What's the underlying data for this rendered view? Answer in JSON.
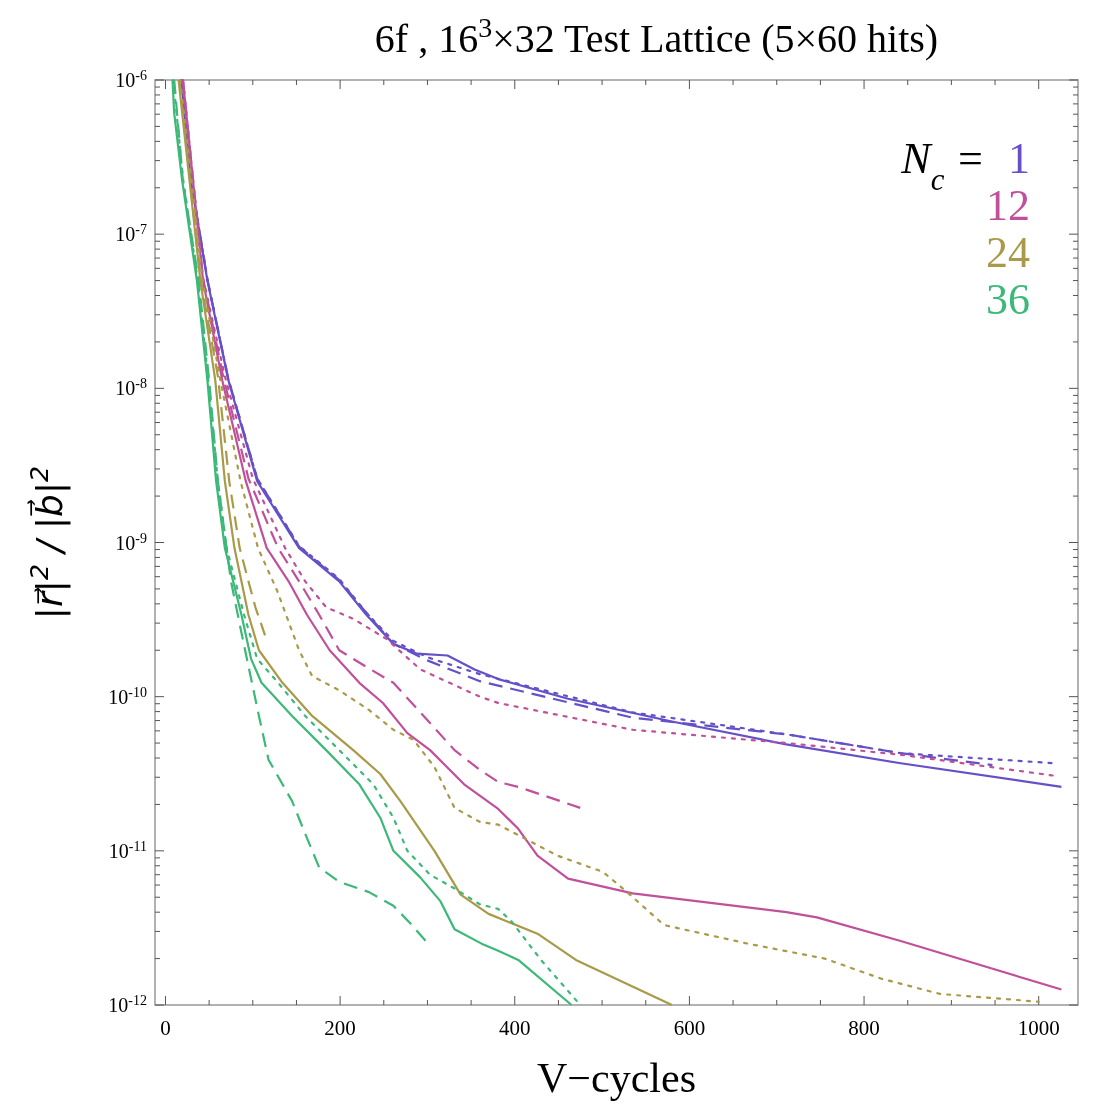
{
  "chart_data": {
    "type": "line",
    "title": "6f , 16$^{3}$×32 Test Lattice (5×60 hits)",
    "xlabel": "V−cycles",
    "ylabel": "|r⃗|$^{2}$ / |b⃗|$^{2}$",
    "legend_title": "N$_{c}$ =",
    "legend": "top right",
    "log": "y",
    "grid": false,
    "xlim": [
      -12,
      1045
    ],
    "xticks": [
      0,
      {
        "value": 50,
        "label": null
      },
      {
        "value": 100,
        "label": null
      },
      {
        "value": 150,
        "label": null
      },
      200,
      {
        "value": 250,
        "label": null
      },
      {
        "value": 300,
        "label": null
      },
      {
        "value": 350,
        "label": null
      },
      400,
      {
        "value": 450,
        "label": null
      },
      {
        "value": 500,
        "label": null
      },
      {
        "value": 550,
        "label": null
      },
      600,
      {
        "value": 650,
        "label": null
      },
      {
        "value": 700,
        "label": null
      },
      {
        "value": 750,
        "label": null
      },
      800,
      {
        "value": 850,
        "label": null
      },
      {
        "value": 900,
        "label": null
      },
      {
        "value": 950,
        "label": null
      },
      1000
    ],
    "ylim": [
      1e-12,
      1e-06
    ],
    "yticks": [
      {
        "value": 1e-12,
        "label": "10$^{-12}$"
      },
      {
        "value": 2e-12,
        "label": null
      },
      {
        "value": 3e-12,
        "label": null
      },
      {
        "value": 4e-12,
        "label": null
      },
      {
        "value": 5e-12,
        "label": null
      },
      {
        "value": 6e-12,
        "label": null
      },
      {
        "value": 7e-12,
        "label": null
      },
      {
        "value": 8e-12,
        "label": null
      },
      {
        "value": 9e-12,
        "label": null
      },
      {
        "value": 1e-11,
        "label": "10$^{-11}$"
      },
      {
        "value": 2e-11,
        "label": null
      },
      {
        "value": 3e-11,
        "label": null
      },
      {
        "value": 4e-11,
        "label": null
      },
      {
        "value": 5e-11,
        "label": null
      },
      {
        "value": 6e-11,
        "label": null
      },
      {
        "value": 7e-11,
        "label": null
      },
      {
        "value": 8e-11,
        "label": null
      },
      {
        "value": 9e-11,
        "label": null
      },
      {
        "value": 1e-10,
        "label": "10$^{-10}$"
      },
      {
        "value": 2e-10,
        "label": null
      },
      {
        "value": 3e-10,
        "label": null
      },
      {
        "value": 4e-10,
        "label": null
      },
      {
        "value": 5e-10,
        "label": null
      },
      {
        "value": 6e-10,
        "label": null
      },
      {
        "value": 7e-10,
        "label": null
      },
      {
        "value": 8e-10,
        "label": null
      },
      {
        "value": 9e-10,
        "label": null
      },
      {
        "value": 1e-09,
        "label": "10$^{-9}$"
      },
      {
        "value": 2e-09,
        "label": null
      },
      {
        "value": 3e-09,
        "label": null
      },
      {
        "value": 4e-09,
        "label": null
      },
      {
        "value": 5e-09,
        "label": null
      },
      {
        "value": 6e-09,
        "label": null
      },
      {
        "value": 7e-09,
        "label": null
      },
      {
        "value": 8e-09,
        "label": null
      },
      {
        "value": 9e-09,
        "label": null
      },
      {
        "value": 1e-08,
        "label": "10$^{-8}$"
      },
      {
        "value": 2e-08,
        "label": null
      },
      {
        "value": 3e-08,
        "label": null
      },
      {
        "value": 4e-08,
        "label": null
      },
      {
        "value": 5e-08,
        "label": null
      },
      {
        "value": 6e-08,
        "label": null
      },
      {
        "value": 7e-08,
        "label": null
      },
      {
        "value": 8e-08,
        "label": null
      },
      {
        "value": 9e-08,
        "label": null
      },
      {
        "value": 1e-07,
        "label": "10$^{-7}$"
      },
      {
        "value": 2e-07,
        "label": null
      },
      {
        "value": 3e-07,
        "label": null
      },
      {
        "value": 4e-07,
        "label": null
      },
      {
        "value": 5e-07,
        "label": null
      },
      {
        "value": 6e-07,
        "label": null
      },
      {
        "value": 7e-07,
        "label": null
      },
      {
        "value": 8e-07,
        "label": null
      },
      {
        "value": 9e-07,
        "label": null
      },
      {
        "value": 1e-06,
        "label": "10$^{-6}$"
      }
    ],
    "series": [
      {
        "name": "1",
        "color": "#6650c8",
        "line_style": "solid",
        "x": [
          18,
          29,
          48,
          72,
          105,
          153,
          199,
          230,
          261,
          288,
          323,
          354,
          381,
          461,
          580,
          711,
          842,
          1026
        ],
        "values": [
          1e-06,
          2.25e-07,
          5e-08,
          1.13e-08,
          2.5e-09,
          9.2e-10,
          5.6e-10,
          3.4e-10,
          2.2e-10,
          1.9e-10,
          1.85e-10,
          1.5e-10,
          1.3e-10,
          9.7e-11,
          6.9e-11,
          4.9e-11,
          3.7e-11,
          2.6e-11
        ]
      },
      {
        "color": "#6650c8",
        "line_style": "dashed",
        "x": [
          18,
          29,
          48,
          72,
          105,
          153,
          199,
          230,
          261,
          302,
          360,
          535,
          711,
          842,
          947
        ],
        "values": [
          1e-06,
          2.3e-07,
          5.1e-08,
          1.15e-08,
          2.6e-09,
          9.4e-10,
          5.7e-10,
          3.5e-10,
          2.2e-10,
          1.7e-10,
          1.26e-10,
          7.3e-11,
          5.7e-11,
          4.3e-11,
          3.6e-11
        ]
      },
      {
        "color": "#6650c8",
        "line_style": "dotted",
        "x": [
          18,
          29,
          48,
          72,
          105,
          153,
          199,
          230,
          261,
          300,
          360,
          535,
          711,
          842,
          1018
        ],
        "values": [
          1e-06,
          2.3e-07,
          5.1e-08,
          1.15e-08,
          2.6e-09,
          9.5e-10,
          5.8e-10,
          3.5e-10,
          2.3e-10,
          1.8e-10,
          1.4e-10,
          7.9e-11,
          5.7e-11,
          4.3e-11,
          3.7e-11
        ]
      },
      {
        "name": "12",
        "color": "#c0509a",
        "line_style": "solid",
        "x": [
          20,
          43,
          65,
          92,
          116,
          141,
          162,
          188,
          222,
          249,
          277,
          303,
          342,
          381,
          404,
          426,
          461,
          535,
          711,
          746,
          842,
          1026
        ],
        "values": [
          1e-06,
          5e-08,
          1.13e-08,
          2.5e-09,
          9.2e-10,
          5.6e-10,
          3.4e-10,
          2e-10,
          1.23e-10,
          9.1e-11,
          5.8e-11,
          4.5e-11,
          2.7e-11,
          1.87e-11,
          1.39e-11,
          9.3e-12,
          6.6e-12,
          5.3e-12,
          4e-12,
          3.7e-12,
          2.6e-12,
          1.26e-12
        ]
      },
      {
        "color": "#c0509a",
        "line_style": "dashed",
        "x": [
          20,
          43,
          66,
          95,
          129,
          153,
          176,
          199,
          230,
          261,
          292,
          331,
          360,
          381,
          404,
          475
        ],
        "values": [
          1e-06,
          5.2e-08,
          1.2e-08,
          2.6e-09,
          9.2e-10,
          5.6e-10,
          3.4e-10,
          2e-10,
          1.56e-10,
          1.23e-10,
          7.9e-11,
          4.5e-11,
          3.35e-11,
          2.8e-11,
          2.6e-11,
          1.9e-11
        ]
      },
      {
        "color": "#c0509a",
        "line_style": "dotted",
        "x": [
          20,
          43,
          68,
          100,
          137,
          160,
          184,
          215,
          253,
          292,
          360,
          381,
          535,
          711,
          842,
          1020
        ],
        "values": [
          1e-06,
          5.2e-08,
          1.2e-08,
          2.6e-09,
          9.2e-10,
          5.6e-10,
          3.8e-10,
          3.2e-10,
          2.37e-10,
          1.5e-10,
          1e-10,
          9.1e-11,
          6.1e-11,
          5e-11,
          4.2e-11,
          3.06e-11
        ]
      },
      {
        "name": "24",
        "color": "#a89a48",
        "line_style": "solid",
        "x": [
          15,
          40,
          57,
          68,
          79,
          95,
          107,
          134,
          168,
          215,
          246,
          269,
          308,
          338,
          370,
          426,
          470,
          580
        ],
        "values": [
          1e-06,
          5e-08,
          1.13e-08,
          2.5e-09,
          9.2e-10,
          3.4e-10,
          2e-10,
          1.23e-10,
          7.5e-11,
          4.5e-11,
          3.15e-11,
          2.1e-11,
          1e-11,
          5.2e-12,
          3.9e-12,
          2.9e-12,
          1.96e-12,
          1e-12
        ]
      },
      {
        "color": "#a89a48",
        "line_style": "dashed",
        "x": [
          16,
          40,
          60,
          73,
          85,
          95,
          103,
          114
        ],
        "values": [
          1e-06,
          5.2e-08,
          1.2e-08,
          2.5e-09,
          9.2e-10,
          5.6e-10,
          3.8e-10,
          2.5e-10
        ]
      },
      {
        "color": "#a89a48",
        "line_style": "dotted",
        "x": [
          17,
          42,
          62,
          86,
          106,
          128,
          153,
          168,
          199,
          233,
          261,
          284,
          308,
          331,
          360,
          381,
          449,
          501,
          527,
          571,
          667,
          755,
          820,
          887,
          1000
        ],
        "values": [
          1e-06,
          5.2e-08,
          1.2e-08,
          2.5e-09,
          9.2e-10,
          4.85e-10,
          2e-10,
          1.36e-10,
          1.1e-10,
          8.2e-11,
          6.1e-11,
          5.25e-11,
          3.5e-11,
          1.9e-11,
          1.54e-11,
          1.48e-11,
          9.3e-12,
          7.3e-12,
          5.5e-12,
          3.3e-12,
          2.5e-12,
          2e-12,
          1.48e-12,
          1.18e-12,
          1.05e-12
        ]
      },
      {
        "name": "36",
        "color": "#3cb878",
        "line_style": "solid",
        "x": [
          8,
          10,
          19,
          36,
          48,
          58,
          68,
          87,
          98,
          110,
          145,
          184,
          222,
          246,
          261,
          292,
          315,
          331,
          362,
          381,
          404,
          465
        ],
        "values": [
          1e-06,
          6.1e-07,
          2.25e-07,
          5e-08,
          1.13e-08,
          2.5e-09,
          9.2e-10,
          3.4e-10,
          1.76e-10,
          1.23e-10,
          7.5e-11,
          4.5e-11,
          2.7e-11,
          1.64e-11,
          1e-11,
          6.7e-12,
          4.7e-12,
          3.1e-12,
          2.5e-12,
          2.25e-12,
          1.96e-12,
          1e-12
        ]
      },
      {
        "color": "#3cb878",
        "line_style": "dotted",
        "x": [
          9,
          20,
          37,
          49,
          60,
          70,
          90,
          105,
          129,
          160,
          199,
          238,
          261,
          277,
          303,
          331,
          360,
          381,
          396,
          430,
          475
        ],
        "values": [
          1e-06,
          2.3e-07,
          5e-08,
          1.13e-08,
          2.5e-09,
          9.2e-10,
          3.4e-10,
          1.76e-10,
          1.23e-10,
          7.5e-11,
          4.5e-11,
          2.7e-11,
          1.64e-11,
          1e-11,
          7e-12,
          5.7e-12,
          4.5e-12,
          4.2e-12,
          3.5e-12,
          1.96e-12,
          1e-12
        ]
      },
      {
        "color": "#3cb878",
        "line_style": "dashed",
        "x": [
          10,
          20,
          38,
          50,
          60,
          70,
          75,
          87,
          95,
          107,
          118,
          145,
          160,
          176,
          199,
          233,
          261,
          280,
          302
        ],
        "values": [
          1e-06,
          2.2e-07,
          5e-08,
          1.13e-08,
          2.5e-09,
          9.2e-10,
          5.6e-10,
          2.6e-10,
          1.58e-10,
          7.5e-11,
          3.9e-11,
          2.1e-11,
          1.29e-11,
          7.8e-12,
          6.3e-12,
          5.4e-12,
          4.4e-12,
          3.4e-12,
          2.45e-12
        ]
      }
    ]
  }
}
